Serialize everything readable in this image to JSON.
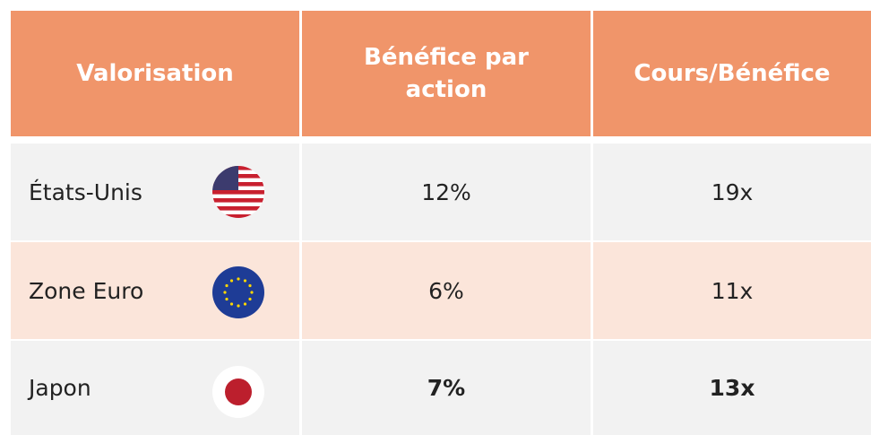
{
  "table": {
    "header": [
      "Valorisation",
      "Bénéfice par action",
      "Cours/Bénéfice"
    ],
    "rows": [
      [
        "États-Unis",
        "12%",
        "19x"
      ],
      [
        "Zone Euro",
        "6%",
        "11x"
      ],
      [
        "Japon",
        "7%",
        "13x"
      ]
    ]
  }
}
